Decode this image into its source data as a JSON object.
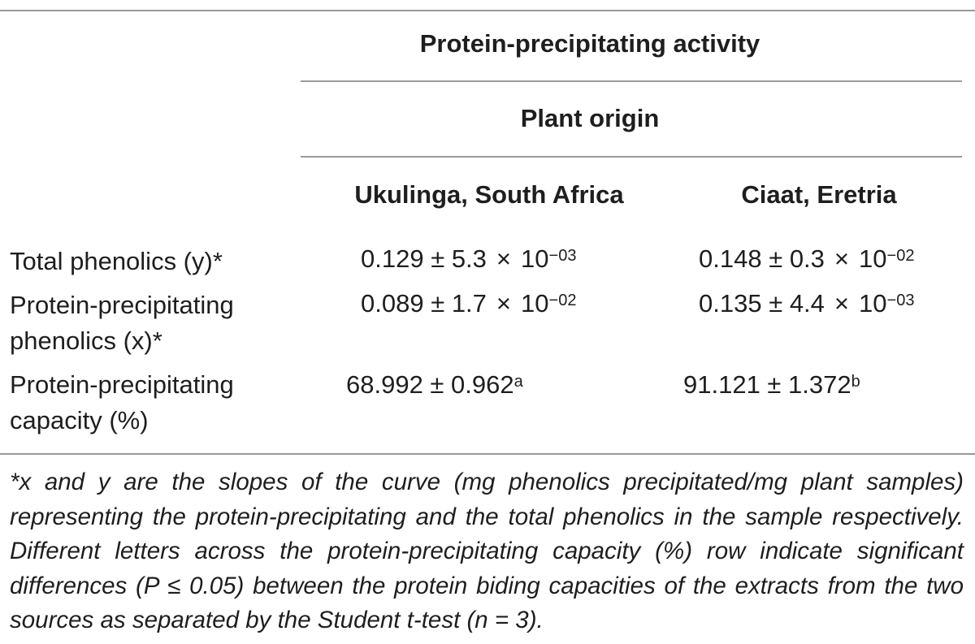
{
  "table": {
    "header": {
      "group_title": "Protein-precipitating activity",
      "subgroup_title": "Plant origin",
      "columns": [
        "Ukulinga, South Africa",
        "Ciaat, Eretria"
      ]
    },
    "rows": [
      {
        "label_lines": [
          "Total phenolics (y)*"
        ],
        "cells": [
          {
            "mantissa": "0.129 ± 5.3",
            "times": "×",
            "base": "10",
            "exponent": "−03"
          },
          {
            "mantissa": "0.148 ± 0.3",
            "times": "×",
            "base": "10",
            "exponent": "−02"
          }
        ]
      },
      {
        "label_lines": [
          "Protein-precipitating",
          "phenolics (x)*"
        ],
        "cells": [
          {
            "mantissa": "0.089 ± 1.7",
            "times": "×",
            "base": "10",
            "exponent": "−02"
          },
          {
            "mantissa": "0.135 ± 4.4",
            "times": "×",
            "base": "10",
            "exponent": "−03"
          }
        ]
      },
      {
        "label_lines": [
          "Protein-precipitating",
          "capacity (%)"
        ],
        "cells": [
          {
            "value": "68.992 ± 0.962",
            "superscript": "a"
          },
          {
            "value": "91.121 ± 1.372",
            "superscript": "b"
          }
        ]
      }
    ],
    "footnote": "*x and y are the slopes of the curve (mg phenolics precipitated/mg plant samples) representing the protein-precipitating and the total phenolics in the sample respectively. Different letters across the protein-precipitating capacity (%) row indicate significant differences (P ≤ 0.05) between the protein biding capacities of the extracts from the two sources as separated by the Student t-test (n = 3)."
  }
}
